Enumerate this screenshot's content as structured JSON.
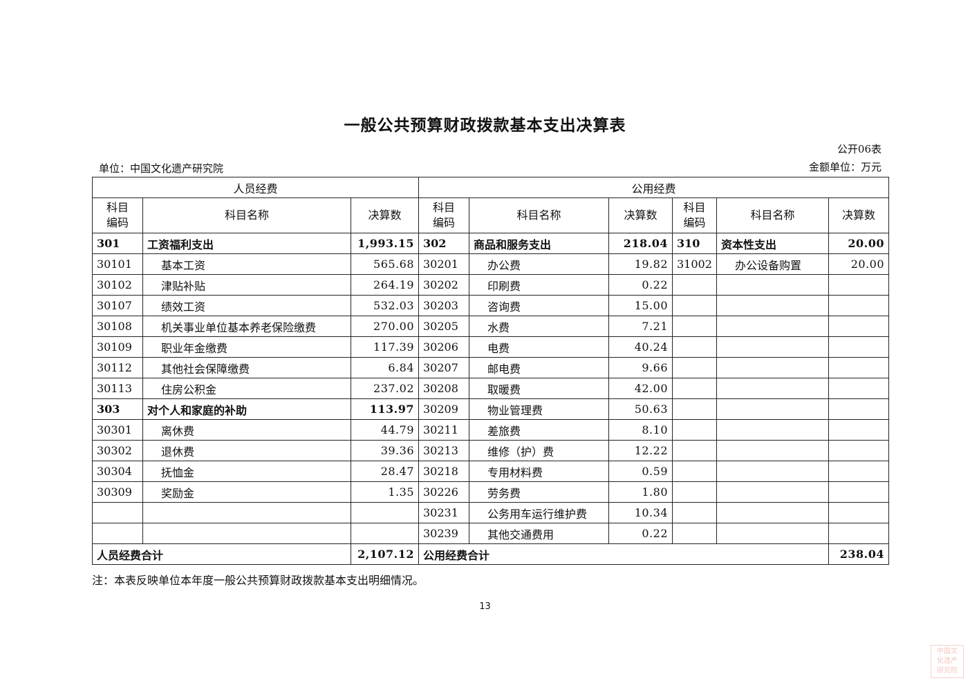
{
  "title": "一般公共预算财政拨款基本支出决算表",
  "form_no": "公开06表",
  "unit": "单位：中国文化遗产研究院",
  "amount_unit": "金额单位：万元",
  "headers": {
    "personnel": "人员经费",
    "public": "公用经费",
    "code": "科目\n编码",
    "name": "科目名称",
    "amount": "决算数"
  },
  "left_rows": [
    {
      "code": "301",
      "name": "工资福利支出",
      "amount": "1,993.15",
      "bold": true
    },
    {
      "code": "30101",
      "name": "基本工资",
      "amount": "565.68"
    },
    {
      "code": "30102",
      "name": "津贴补贴",
      "amount": "264.19"
    },
    {
      "code": "30107",
      "name": "绩效工资",
      "amount": "532.03"
    },
    {
      "code": "30108",
      "name": "机关事业单位基本养老保险缴费",
      "amount": "270.00"
    },
    {
      "code": "30109",
      "name": "职业年金缴费",
      "amount": "117.39"
    },
    {
      "code": "30112",
      "name": "其他社会保障缴费",
      "amount": "6.84"
    },
    {
      "code": "30113",
      "name": "住房公积金",
      "amount": "237.02"
    },
    {
      "code": "303",
      "name": "对个人和家庭的补助",
      "amount": "113.97",
      "bold": true
    },
    {
      "code": "30301",
      "name": "离休费",
      "amount": "44.79"
    },
    {
      "code": "30302",
      "name": "退休费",
      "amount": "39.36"
    },
    {
      "code": "30304",
      "name": "抚恤金",
      "amount": "28.47"
    },
    {
      "code": "30309",
      "name": "奖励金",
      "amount": "1.35"
    },
    {
      "code": "",
      "name": "",
      "amount": ""
    },
    {
      "code": "",
      "name": "",
      "amount": ""
    }
  ],
  "mid_rows": [
    {
      "code": "302",
      "name": "商品和服务支出",
      "amount": "218.04",
      "bold": true
    },
    {
      "code": "30201",
      "name": "办公费",
      "amount": "19.82"
    },
    {
      "code": "30202",
      "name": "印刷费",
      "amount": "0.22"
    },
    {
      "code": "30203",
      "name": "咨询费",
      "amount": "15.00"
    },
    {
      "code": "30205",
      "name": "水费",
      "amount": "7.21"
    },
    {
      "code": "30206",
      "name": "电费",
      "amount": "40.24"
    },
    {
      "code": "30207",
      "name": "邮电费",
      "amount": "9.66"
    },
    {
      "code": "30208",
      "name": "取暖费",
      "amount": "42.00"
    },
    {
      "code": "30209",
      "name": "物业管理费",
      "amount": "50.63"
    },
    {
      "code": "30211",
      "name": "差旅费",
      "amount": "8.10"
    },
    {
      "code": "30213",
      "name": "维修（护）费",
      "amount": "12.22"
    },
    {
      "code": "30218",
      "name": "专用材料费",
      "amount": "0.59"
    },
    {
      "code": "30226",
      "name": "劳务费",
      "amount": "1.80"
    },
    {
      "code": "30231",
      "name": "公务用车运行维护费",
      "amount": "10.34"
    },
    {
      "code": "30239",
      "name": "其他交通费用",
      "amount": "0.22"
    }
  ],
  "right_rows": [
    {
      "code": "310",
      "name": "资本性支出",
      "amount": "20.00",
      "bold": true
    },
    {
      "code": "31002",
      "name": "办公设备购置",
      "amount": "20.00"
    }
  ],
  "totals": {
    "personnel_label": "人员经费合计",
    "personnel_amount": "2,107.12",
    "public_label": "公用经费合计",
    "public_amount": "238.04"
  },
  "note": "注：本表反映单位本年度一般公共预算财政拨款基本支出明细情况。",
  "page_number": "13",
  "seal_text": "中国文化遗产研究院"
}
